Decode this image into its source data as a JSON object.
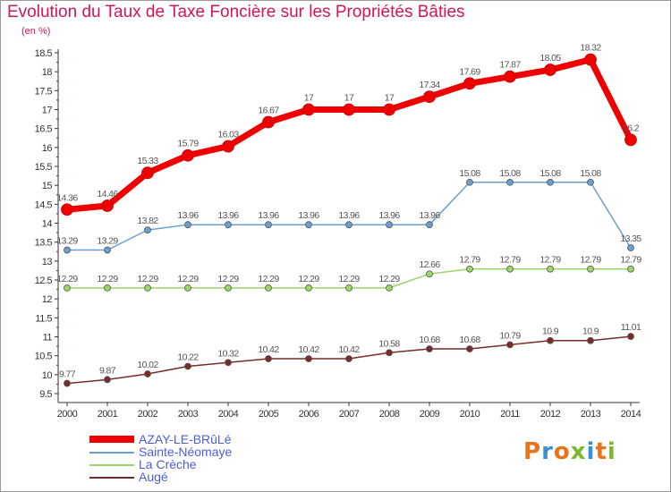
{
  "header": {
    "title": "Evolution du Taux de Taxe Foncière sur les Propriétés Bâties",
    "unit": "(en %)"
  },
  "logo": {
    "text": "Proxiti",
    "colors": [
      "#e8731a",
      "#3a8fd6",
      "#e8731a",
      "#7bb82b",
      "#3a8fd6",
      "#e8731a",
      "#7bb82b"
    ]
  },
  "chart_data": {
    "type": "line",
    "title": "Evolution du Taux de Taxe Foncière sur les Propriétés Bâties",
    "ylabel": "(en %)",
    "xlabel": "",
    "ylim": [
      9.5,
      18.5
    ],
    "yticks": [
      "9.5",
      "10",
      "10.5",
      "11",
      "11.5",
      "12",
      "12.5",
      "13",
      "13.5",
      "14",
      "14.5",
      "15",
      "15.5",
      "16",
      "16.5",
      "17",
      "17.5",
      "18",
      "18.5"
    ],
    "grid": false,
    "legend_position": "bottom-left",
    "x": [
      "2000",
      "2001",
      "2002",
      "2003",
      "2004",
      "2005",
      "2006",
      "2007",
      "2008",
      "2009",
      "2010",
      "2011",
      "2012",
      "2013",
      "2014"
    ],
    "series": [
      {
        "name": "AZAY-LE-BRûLé",
        "color": "#ee0000",
        "values": [
          14.36,
          14.46,
          15.33,
          15.79,
          16.03,
          16.67,
          17,
          17,
          17,
          17.34,
          17.69,
          17.87,
          18.05,
          18.32,
          16.2
        ],
        "labels": [
          "14.36",
          "14.46",
          "15.33",
          "15.79",
          "16.03",
          "16.67",
          "17",
          "17",
          "17",
          "17.34",
          "17.69",
          "17.87",
          "18.05",
          "18.32",
          "16.2"
        ]
      },
      {
        "name": "Sainte-Néomaye",
        "color": "#6a9fd0",
        "values": [
          13.29,
          13.29,
          13.82,
          13.96,
          13.96,
          13.96,
          13.96,
          13.96,
          13.96,
          13.96,
          15.08,
          15.08,
          15.08,
          15.08,
          13.35
        ],
        "labels": [
          "13.29",
          "13.29",
          "13.82",
          "13.96",
          "13.96",
          "13.96",
          "13.96",
          "13.96",
          "13.96",
          "13.96",
          "15.08",
          "15.08",
          "15.08",
          "15.08",
          "13.35"
        ]
      },
      {
        "name": "La Crèche",
        "color": "#9ad66a",
        "values": [
          12.29,
          12.29,
          12.29,
          12.29,
          12.29,
          12.29,
          12.29,
          12.29,
          12.29,
          12.66,
          12.79,
          12.79,
          12.79,
          12.79,
          12.79
        ],
        "labels": [
          "12.29",
          "12.29",
          "12.29",
          "12.29",
          "12.29",
          "12.29",
          "12.29",
          "12.29",
          "12.29",
          "12.66",
          "12.79",
          "12.79",
          "12.79",
          "12.79",
          "12.79"
        ]
      },
      {
        "name": "Augé",
        "color": "#7a2a2a",
        "values": [
          9.77,
          9.87,
          10.02,
          10.22,
          10.32,
          10.42,
          10.42,
          10.42,
          10.58,
          10.68,
          10.68,
          10.79,
          10.9,
          10.9,
          11.01
        ],
        "labels": [
          "9.77",
          "9.87",
          "10.02",
          "10.22",
          "10.32",
          "10.42",
          "10.42",
          "10.42",
          "10.58",
          "10.68",
          "10.68",
          "10.79",
          "10.9",
          "10.9",
          "11.01"
        ]
      }
    ]
  }
}
